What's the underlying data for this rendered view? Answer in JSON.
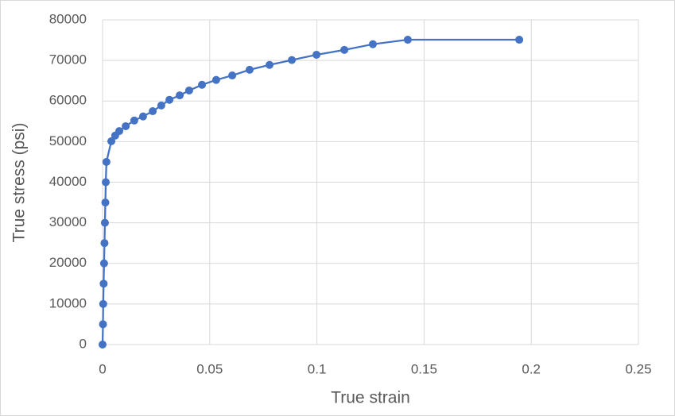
{
  "chart_data": {
    "type": "scatter-line",
    "x_label": "True strain",
    "y_label": "True stress (psi)",
    "x": [
      0,
      0.0002,
      0.0003,
      0.0005,
      0.0007,
      0.0009,
      0.0011,
      0.0013,
      0.0015,
      0.0018,
      0.0041,
      0.0059,
      0.0078,
      0.0108,
      0.0148,
      0.0189,
      0.0234,
      0.0274,
      0.0312,
      0.036,
      0.0404,
      0.0464,
      0.053,
      0.0605,
      0.0686,
      0.0779,
      0.0883,
      0.0998,
      0.1128,
      0.1261,
      0.1424,
      0.1944
    ],
    "values": [
      0,
      5000,
      10000,
      15000,
      20000,
      25000,
      30000,
      35000,
      40000,
      45000,
      50100,
      51500,
      52600,
      53800,
      55200,
      56200,
      57500,
      58900,
      60300,
      61400,
      62600,
      64000,
      65200,
      66300,
      67700,
      68900,
      70100,
      71400,
      72600,
      74000,
      75100,
      75100
    ],
    "color": "#4472c4",
    "xlim": [
      0,
      0.25
    ],
    "xticks": [
      0,
      0.05,
      0.1,
      0.15,
      0.2,
      0.25
    ],
    "ylim": [
      0,
      80000
    ],
    "yticks": [
      0,
      10000,
      20000,
      30000,
      40000,
      50000,
      60000,
      70000,
      80000
    ],
    "grid": true
  }
}
